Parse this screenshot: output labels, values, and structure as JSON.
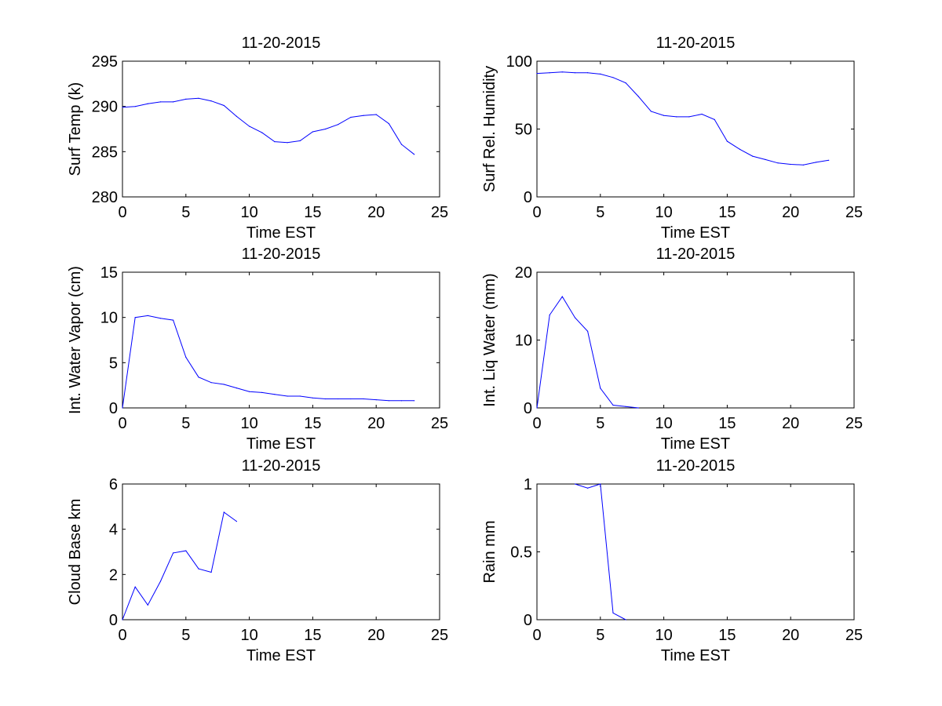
{
  "figure": {
    "background": "#ffffff",
    "line_color": "#0000ff"
  },
  "chart_data": [
    {
      "id": "surf-temp",
      "type": "line",
      "title": "11-20-2015",
      "xlabel": "Time EST",
      "ylabel": "Surf Temp (k)",
      "xlim": [
        0,
        25
      ],
      "ylim": [
        280,
        295
      ],
      "xticks": [
        0,
        5,
        10,
        15,
        20,
        25
      ],
      "yticks": [
        280,
        285,
        290,
        295
      ],
      "x": [
        0,
        1,
        2,
        3,
        4,
        5,
        6,
        7,
        8,
        9,
        10,
        11,
        12,
        13,
        14,
        15,
        16,
        17,
        18,
        19,
        20,
        21,
        22,
        23
      ],
      "values": [
        289.9,
        290.0,
        290.3,
        290.5,
        290.5,
        290.8,
        290.9,
        290.6,
        290.1,
        288.9,
        287.8,
        287.1,
        286.1,
        286.0,
        286.2,
        287.2,
        287.5,
        288.0,
        288.8,
        289.0,
        289.1,
        288.1,
        285.8,
        284.7
      ]
    },
    {
      "id": "surf-rel-humidity",
      "type": "line",
      "title": "11-20-2015",
      "xlabel": "Time EST",
      "ylabel": "Surf Rel. Humidity",
      "xlim": [
        0,
        25
      ],
      "ylim": [
        0,
        100
      ],
      "xticks": [
        0,
        5,
        10,
        15,
        20,
        25
      ],
      "yticks": [
        0,
        50,
        100
      ],
      "x": [
        0,
        1,
        2,
        3,
        4,
        5,
        6,
        7,
        8,
        9,
        10,
        11,
        12,
        13,
        14,
        15,
        16,
        17,
        18,
        19,
        20,
        21,
        22,
        23
      ],
      "values": [
        91,
        91.5,
        92,
        91.5,
        91.5,
        90.5,
        88,
        84,
        74,
        63,
        60,
        59,
        59,
        61,
        57,
        41,
        35,
        30,
        27.5,
        25,
        24,
        23.5,
        25.5,
        27
      ]
    },
    {
      "id": "int-water-vapor",
      "type": "line",
      "title": "11-20-2015",
      "xlabel": "Time EST",
      "ylabel": "Int. Water Vapor (cm)",
      "xlim": [
        0,
        25
      ],
      "ylim": [
        0,
        15
      ],
      "xticks": [
        0,
        5,
        10,
        15,
        20,
        25
      ],
      "yticks": [
        0,
        5,
        10,
        15
      ],
      "x": [
        0,
        1,
        2,
        3,
        4,
        5,
        6,
        7,
        8,
        9,
        10,
        11,
        12,
        13,
        14,
        15,
        16,
        17,
        18,
        19,
        20,
        21,
        22,
        23
      ],
      "values": [
        0,
        10.0,
        10.2,
        9.9,
        9.7,
        5.6,
        3.4,
        2.8,
        2.6,
        2.2,
        1.8,
        1.7,
        1.5,
        1.3,
        1.3,
        1.1,
        1.0,
        1.0,
        1.0,
        1.0,
        0.9,
        0.8,
        0.8,
        0.8
      ]
    },
    {
      "id": "int-liq-water",
      "type": "line",
      "title": "11-20-2015",
      "xlabel": "Time EST",
      "ylabel": "Int. Liq Water (mm)",
      "xlim": [
        0,
        25
      ],
      "ylim": [
        0,
        20
      ],
      "xticks": [
        0,
        5,
        10,
        15,
        20,
        25
      ],
      "yticks": [
        0,
        10,
        20
      ],
      "x": [
        0,
        1,
        2,
        3,
        4,
        5,
        6,
        7,
        8
      ],
      "values": [
        0,
        13.7,
        16.4,
        13.3,
        11.3,
        2.9,
        0.4,
        0.2,
        0.0
      ]
    },
    {
      "id": "cloud-base",
      "type": "line",
      "title": "11-20-2015",
      "xlabel": "Time EST",
      "ylabel": "Cloud Base km",
      "xlim": [
        0,
        25
      ],
      "ylim": [
        0,
        6
      ],
      "xticks": [
        0,
        5,
        10,
        15,
        20,
        25
      ],
      "yticks": [
        0,
        2,
        4,
        6
      ],
      "x": [
        0,
        1,
        2,
        3,
        4,
        5,
        6,
        7,
        8,
        9
      ],
      "values": [
        0,
        1.45,
        0.65,
        1.7,
        2.95,
        3.05,
        2.25,
        2.1,
        4.75,
        4.35
      ]
    },
    {
      "id": "rain",
      "type": "line",
      "title": "11-20-2015",
      "xlabel": "Time EST",
      "ylabel": "Rain mm",
      "xlim": [
        0,
        25
      ],
      "ylim": [
        0,
        1
      ],
      "xticks": [
        0,
        5,
        10,
        15,
        20,
        25
      ],
      "yticks": [
        0,
        0.5,
        1
      ],
      "x": [
        3,
        4,
        5,
        6,
        7
      ],
      "values": [
        1.0,
        0.97,
        1.0,
        0.05,
        0.0
      ]
    }
  ]
}
